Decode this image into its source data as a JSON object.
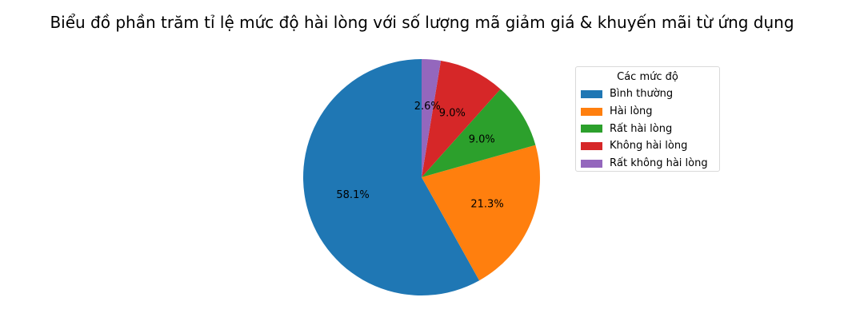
{
  "chart_data": {
    "type": "pie",
    "title": "Biểu đồ phần trăm tỉ lệ mức độ hài lòng với số lượng mã giảm giá & khuyến mãi từ ứng dụng",
    "legend_title": "Các mức độ",
    "legend_position": "top-right",
    "start_angle_deg": 90,
    "direction": "counterclockwise",
    "slices": [
      {
        "label": "Bình thường",
        "value": 58.1,
        "pct_label": "58.1%",
        "color": "#1f77b4"
      },
      {
        "label": "Hài lòng",
        "value": 21.3,
        "pct_label": "21.3%",
        "color": "#ff7f0e"
      },
      {
        "label": "Rất hài lòng",
        "value": 9.0,
        "pct_label": "9.0%",
        "color": "#2ca02c"
      },
      {
        "label": "Không hài lòng",
        "value": 9.0,
        "pct_label": "9.0%",
        "color": "#d62728"
      },
      {
        "label": "Rất không hài lòng",
        "value": 2.6,
        "pct_label": "2.6%",
        "color": "#9467bd"
      }
    ]
  }
}
